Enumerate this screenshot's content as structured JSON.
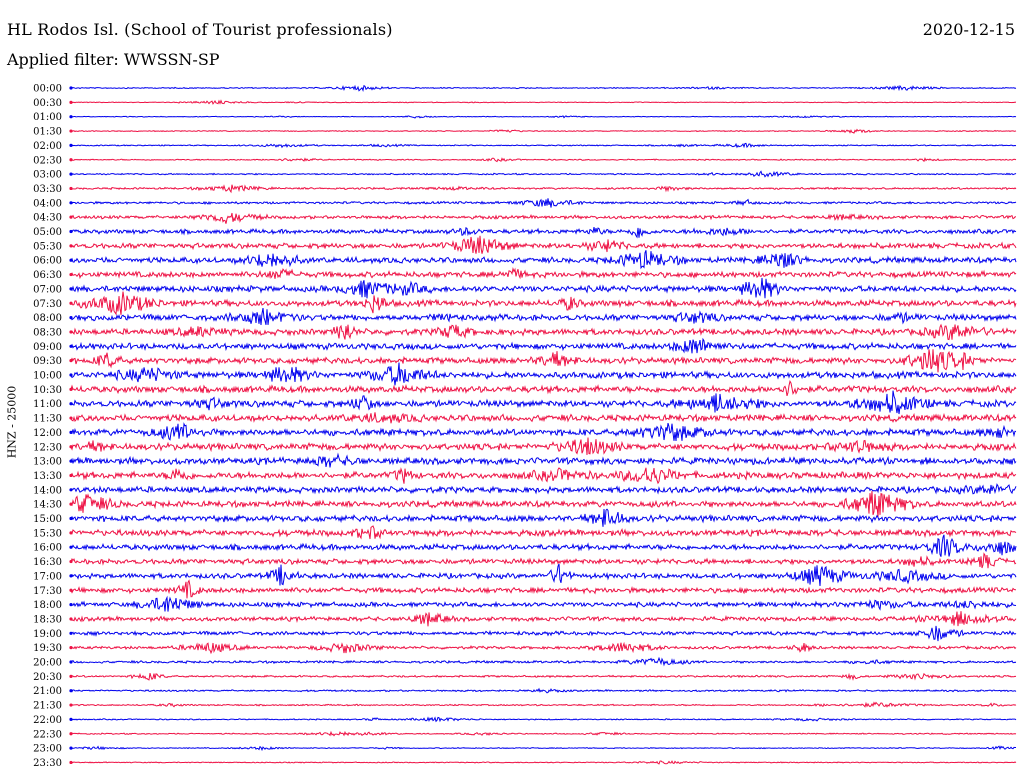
{
  "header": {
    "station": "HL Rodos Isl. (School of Tourist professionals)",
    "date": "2020-12-15",
    "filter": "Applied filter: WWSSN-SP"
  },
  "chart_data": {
    "type": "line",
    "title": "HL Rodos Isl. (School of Tourist professionals)",
    "ylabel": "HNZ - 25000",
    "y_tick_labels": [
      "00:00",
      "00:30",
      "01:00",
      "01:30",
      "02:00",
      "02:30",
      "03:00",
      "03:30",
      "04:00",
      "04:30",
      "05:00",
      "05:30",
      "06:00",
      "06:30",
      "07:00",
      "07:30",
      "08:00",
      "08:30",
      "09:00",
      "09:30",
      "10:00",
      "10:30",
      "11:00",
      "11:30",
      "12:00",
      "12:30",
      "13:00",
      "13:30",
      "14:00",
      "14:30",
      "15:00",
      "15:30",
      "16:00",
      "16:30",
      "17:00",
      "17:30",
      "18:00",
      "18:30",
      "19:00",
      "19:30",
      "20:00",
      "20:30",
      "21:00",
      "21:30",
      "22:00",
      "22:30",
      "23:00",
      "23:30"
    ],
    "series_colors": [
      "#0000ee",
      "#ee1144"
    ],
    "trace_amplitude": [
      0.12,
      0.08,
      0.08,
      0.1,
      0.12,
      0.12,
      0.15,
      0.2,
      0.25,
      0.35,
      0.45,
      0.55,
      0.6,
      0.6,
      0.65,
      0.65,
      0.65,
      0.65,
      0.65,
      0.65,
      0.7,
      0.7,
      0.7,
      0.7,
      0.7,
      0.7,
      0.7,
      0.7,
      0.65,
      0.65,
      0.65,
      0.65,
      0.6,
      0.55,
      0.55,
      0.55,
      0.5,
      0.45,
      0.4,
      0.3,
      0.25,
      0.2,
      0.18,
      0.15,
      0.12,
      0.12,
      0.1,
      0.1
    ],
    "grid": false,
    "legend": "none"
  }
}
